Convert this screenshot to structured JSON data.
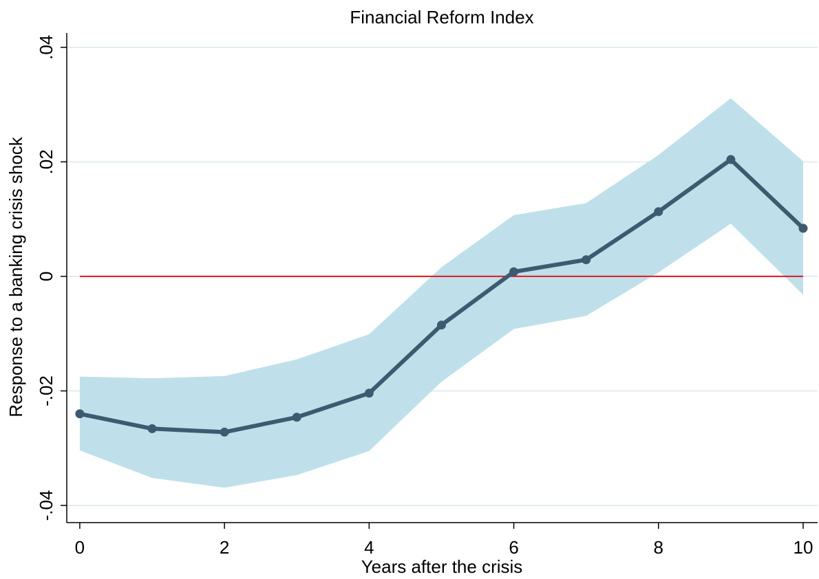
{
  "chart_data": {
    "type": "line",
    "title": "Financial Reform Index",
    "x_label": "Years after the crisis",
    "y_label": "Response to a banking crisis shock",
    "x": [
      0,
      1,
      2,
      3,
      4,
      5,
      6,
      7,
      8,
      9,
      10
    ],
    "series": [
      {
        "color": "#3e5a70",
        "values": [
          -0.024,
          -0.0266,
          -0.0272,
          -0.0246,
          -0.0204,
          -0.0085,
          0.0008,
          0.0029,
          0.0113,
          0.0204,
          0.0084
        ]
      }
    ],
    "band": {
      "color": "#bfe0ea",
      "upper": [
        -0.0175,
        -0.0178,
        -0.0174,
        -0.0145,
        -0.0101,
        0.0016,
        0.0107,
        0.0128,
        0.0212,
        0.0311,
        0.0201
      ],
      "lower": [
        -0.0304,
        -0.0352,
        -0.0369,
        -0.0347,
        -0.0305,
        -0.0184,
        -0.0092,
        -0.0069,
        0.0007,
        0.0092,
        -0.0032
      ]
    },
    "reference_line": {
      "value": 0,
      "color": "#e8141c"
    },
    "xlim": [
      -0.18,
      10.2
    ],
    "ylim": [
      -0.043,
      0.0425
    ],
    "xticks": [
      0,
      2,
      4,
      6,
      8,
      10
    ],
    "yticks": [
      {
        "value": -0.04,
        "label": "-.04"
      },
      {
        "value": -0.02,
        "label": "-.02"
      },
      0,
      {
        "value": 0.02,
        "label": ".02"
      },
      {
        "value": 0.04,
        "label": ".04"
      }
    ],
    "grid": true
  }
}
